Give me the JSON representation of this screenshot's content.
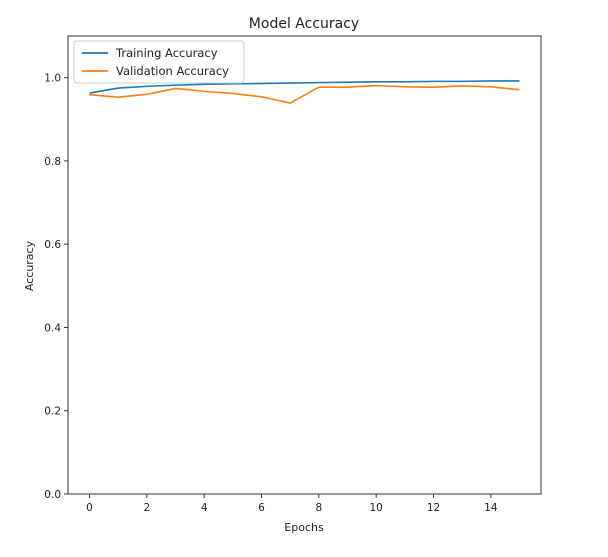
{
  "chart_data": {
    "type": "line",
    "title": "Model Accuracy",
    "xlabel": "Epochs",
    "ylabel": "Accuracy",
    "xlim": [
      -0.75,
      15.75
    ],
    "ylim": [
      0.0,
      1.1
    ],
    "xticks": [
      0,
      2,
      4,
      6,
      8,
      10,
      12,
      14
    ],
    "yticks": [
      0.0,
      0.2,
      0.4,
      0.6,
      0.8,
      1.0
    ],
    "xtick_labels": [
      "0",
      "2",
      "4",
      "6",
      "8",
      "10",
      "12",
      "14"
    ],
    "ytick_labels": [
      "0.0",
      "0.2",
      "0.4",
      "0.6",
      "0.8",
      "1.0"
    ],
    "grid": false,
    "legend_position": "top-left",
    "x": [
      0,
      1,
      2,
      3,
      4,
      5,
      6,
      7,
      8,
      9,
      10,
      11,
      12,
      13,
      14,
      15
    ],
    "series": [
      {
        "name": "Training Accuracy",
        "color": "#1f77b4",
        "values": [
          0.963,
          0.975,
          0.979,
          0.982,
          0.984,
          0.985,
          0.986,
          0.987,
          0.988,
          0.989,
          0.99,
          0.99,
          0.991,
          0.991,
          0.992,
          0.992
        ]
      },
      {
        "name": "Validation Accuracy",
        "color": "#ff7f0e",
        "values": [
          0.959,
          0.953,
          0.96,
          0.974,
          0.967,
          0.962,
          0.954,
          0.939,
          0.977,
          0.977,
          0.981,
          0.978,
          0.977,
          0.98,
          0.978,
          0.971
        ]
      }
    ]
  }
}
